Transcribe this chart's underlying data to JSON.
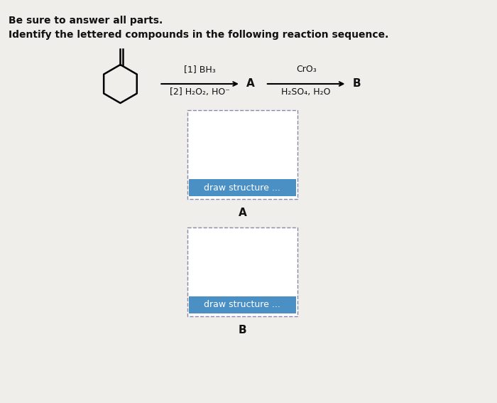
{
  "title_line1": "Be sure to answer all parts.",
  "title_line2": "Identify the lettered compounds in the following reaction sequence.",
  "background_color": "#d0ccc8",
  "page_background": "#f0eeeb",
  "reagent1_line1": "[1] BH₃",
  "reagent1_line2": "[2] H₂O₂, HO⁻",
  "reagent2_line1": "CrO₃",
  "reagent2_line2": "H₂SO₄, H₂O",
  "label_A": "A",
  "label_B": "B",
  "button_text": "draw structure ...",
  "button_color": "#4a90c4",
  "button_text_color": "#ffffff",
  "box_border_color": "#8888aa",
  "box_fill_color": "#e8e6e2",
  "box1_label": "A",
  "box2_label": "B",
  "arrow_color": "#000000",
  "text_color": "#111111"
}
